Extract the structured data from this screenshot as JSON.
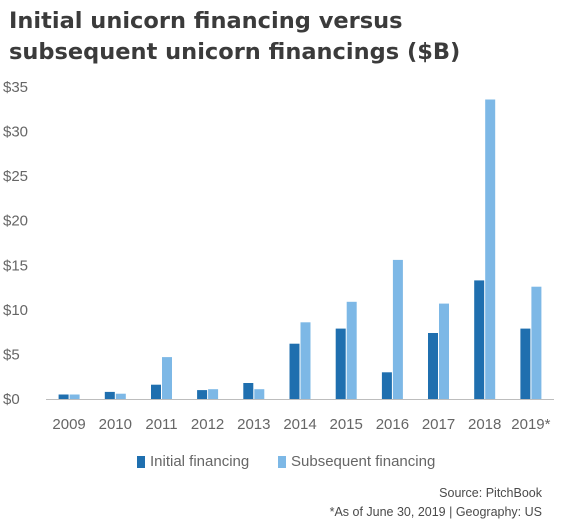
{
  "chart_data": {
    "type": "bar",
    "title_lines": [
      "Initial unicorn financing versus",
      "subsequent unicorn financings ($B)"
    ],
    "categories": [
      "2009",
      "2010",
      "2011",
      "2012",
      "2013",
      "2014",
      "2015",
      "2016",
      "2017",
      "2018",
      "2019*"
    ],
    "series": [
      {
        "name": "Initial financing",
        "color": "#1f6faf",
        "values": [
          0.5,
          0.8,
          1.6,
          1.0,
          1.8,
          6.2,
          7.9,
          3.0,
          7.4,
          13.3,
          7.9
        ]
      },
      {
        "name": "Subsequent financing",
        "color": "#7db8e6",
        "values": [
          0.5,
          0.6,
          4.7,
          1.1,
          1.1,
          8.6,
          10.9,
          15.6,
          10.7,
          33.6,
          12.6
        ]
      }
    ],
    "y_ticks": [
      "$0",
      "$5",
      "$10",
      "$15",
      "$20",
      "$25",
      "$30",
      "$35"
    ],
    "ylim": [
      0,
      35
    ],
    "grid": false,
    "legend_position": "bottom"
  },
  "footer": {
    "source": "Source: PitchBook",
    "note": "*As of June 30, 2019 | Geography: US"
  }
}
